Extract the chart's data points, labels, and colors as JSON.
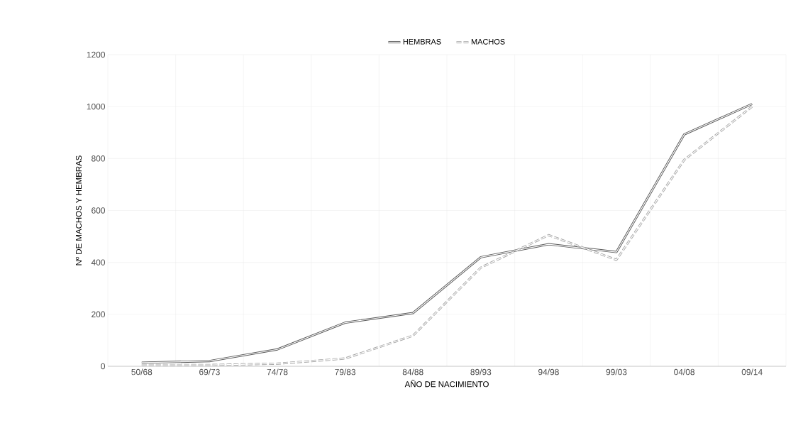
{
  "chart_data": {
    "type": "line",
    "xlabel": "AÑO DE NACIMIENTO",
    "ylabel": "Nº DE MACHOS Y HEMBRAS",
    "categories": [
      "50/68",
      "69/73",
      "74/78",
      "79/83",
      "84/88",
      "89/93",
      "94/98",
      "99/03",
      "04/08",
      "09/14"
    ],
    "series": [
      {
        "name": "HEMBRAS",
        "color": "#595959",
        "line_style": "solid",
        "values": [
          14,
          20,
          65,
          168,
          205,
          420,
          470,
          440,
          893,
          1010
        ]
      },
      {
        "name": "MACHOS",
        "color": "#a6a6a6",
        "line_style": "dashed",
        "values": [
          5,
          5,
          10,
          30,
          118,
          380,
          505,
          410,
          795,
          1000
        ]
      }
    ],
    "ylim": [
      0,
      1200
    ],
    "yticks": [
      0,
      200,
      400,
      600,
      800,
      1000,
      1200
    ],
    "grid": true,
    "legend": "top",
    "marker": "none"
  }
}
